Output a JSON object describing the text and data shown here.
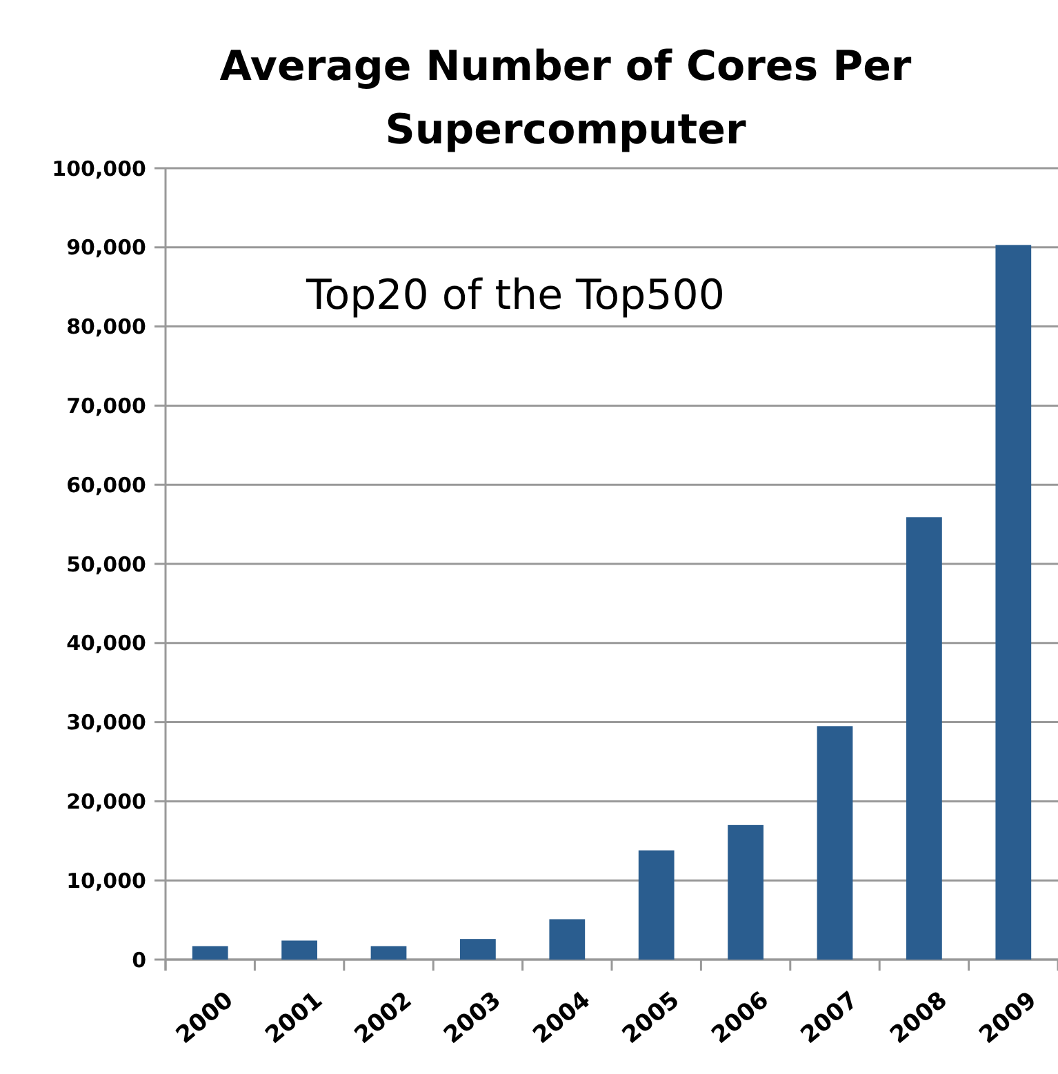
{
  "chart_data": {
    "type": "bar",
    "title": "Average Number of Cores Per Supercomputer",
    "categories": [
      "2000",
      "2001",
      "2002",
      "2003",
      "2004",
      "2005",
      "2006",
      "2007",
      "2008",
      "2009"
    ],
    "values": [
      1700,
      2400,
      1700,
      2600,
      5100,
      13800,
      17000,
      29500,
      55900,
      90300
    ],
    "color": "#2a5d8f",
    "ylim": [
      0,
      100000
    ],
    "yticks": [
      {
        "value": 0,
        "label": "0"
      },
      {
        "value": 10000,
        "label": "10,000"
      },
      {
        "value": 20000,
        "label": "20,000"
      },
      {
        "value": 30000,
        "label": "30,000"
      },
      {
        "value": 40000,
        "label": "40,000"
      },
      {
        "value": 50000,
        "label": "50,000"
      },
      {
        "value": 60000,
        "label": "60,000"
      },
      {
        "value": 70000,
        "label": "70,000"
      },
      {
        "value": 80000,
        "label": "80,000"
      },
      {
        "value": 90000,
        "label": "90,000"
      },
      {
        "value": 100000,
        "label": "100,000"
      }
    ],
    "grid": "y",
    "annotations": [
      "Top20 of the Top500"
    ]
  }
}
